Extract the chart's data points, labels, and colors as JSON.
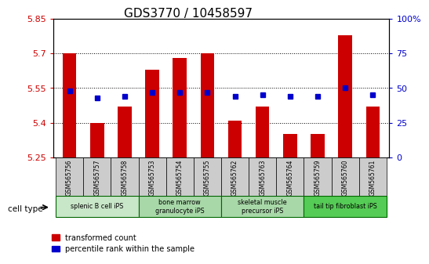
{
  "title": "GDS3770 / 10458597",
  "samples": [
    "GSM565756",
    "GSM565757",
    "GSM565758",
    "GSM565753",
    "GSM565754",
    "GSM565755",
    "GSM565762",
    "GSM565763",
    "GSM565764",
    "GSM565759",
    "GSM565760",
    "GSM565761"
  ],
  "transformed_count": [
    5.7,
    5.4,
    5.47,
    5.63,
    5.68,
    5.7,
    5.41,
    5.47,
    5.35,
    5.35,
    5.78,
    5.47
  ],
  "percentile_rank": [
    48,
    43,
    44,
    47,
    47,
    47,
    44,
    45,
    44,
    44,
    50,
    45
  ],
  "ylim_left": [
    5.25,
    5.85
  ],
  "ylim_right": [
    0,
    100
  ],
  "yticks_left": [
    5.25,
    5.4,
    5.55,
    5.7,
    5.85
  ],
  "yticks_right": [
    0,
    25,
    50,
    75,
    100
  ],
  "ytick_labels_left": [
    "5.25",
    "5.4",
    "5.55",
    "5.7",
    "5.85"
  ],
  "ytick_labels_right": [
    "0",
    "25",
    "50",
    "75",
    "100%"
  ],
  "bar_color": "#cc0000",
  "dot_color": "#0000cc",
  "baseline": 5.25,
  "cell_type_groups": [
    {
      "label": "splenic B cell iPS",
      "start": 0,
      "end": 2,
      "color": "#aaddaa"
    },
    {
      "label": "bone marrow\ngranulocyte iPS",
      "start": 3,
      "end": 5,
      "color": "#88cc88"
    },
    {
      "label": "skeletal muscle\nprecursor iPS",
      "start": 6,
      "end": 8,
      "color": "#88cc88"
    },
    {
      "label": "tail tip fibroblast iPS",
      "start": 9,
      "end": 11,
      "color": "#44bb44"
    }
  ],
  "cell_type_bg_colors": [
    "#c8e6c8",
    "#a8d8a8",
    "#a8d8a8",
    "#44cc44"
  ],
  "grid_color": "#000000",
  "tick_color_left": "#cc0000",
  "tick_color_right": "#0000cc",
  "title_fontsize": 11,
  "legend_fontsize": 8,
  "bar_width": 0.5
}
